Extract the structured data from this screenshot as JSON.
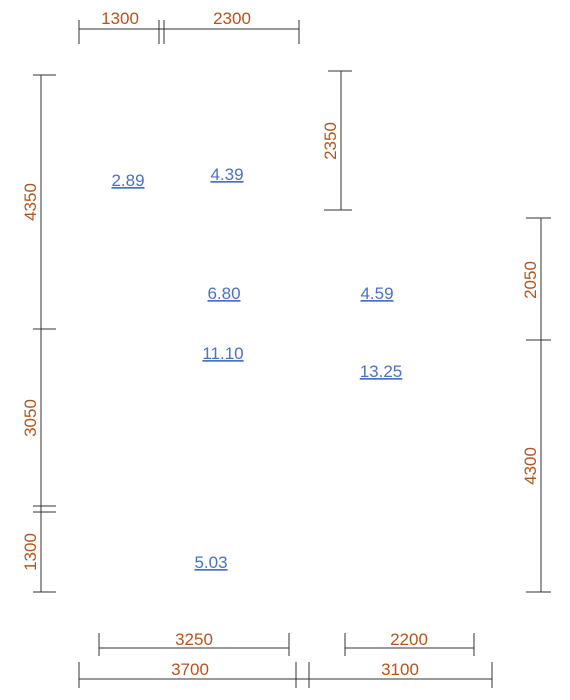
{
  "colors": {
    "dimension_text": "#b5541a",
    "area_text": "#4a72c4",
    "line": "#333333"
  },
  "top_dimensions": {
    "left": "1300",
    "right": "2300"
  },
  "left_dimensions": {
    "upper": "4350",
    "middle": "3050",
    "lower": "1300"
  },
  "inner_dimension": {
    "vertical": "2350"
  },
  "right_dimensions": {
    "upper": "2050",
    "lower": "4300"
  },
  "bottom_dimensions": {
    "inner_left": "3250",
    "inner_right": "2200",
    "outer_left": "3700",
    "outer_right": "3100"
  },
  "room_areas": {
    "room_a": "2.89",
    "room_b": "4.39",
    "room_c": "6.80",
    "room_d": "4.59",
    "room_e": "11.10",
    "room_f": "13.25",
    "room_g": "5.03"
  }
}
